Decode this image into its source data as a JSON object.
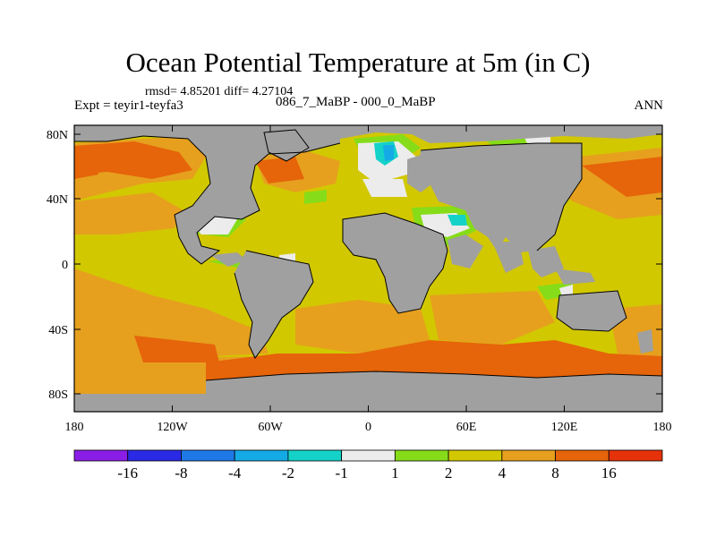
{
  "title": "Ocean Potential Temperature at 5m (in C)",
  "stats_line": "rmsd= 4.85201 diff= 4.27104",
  "expt_line": "Expt = teyir1-teyfa3",
  "diff_name": "086_7_MaBP - 000_0_MaBP",
  "season": "ANN",
  "lat_labels": [
    "80N",
    "40N",
    "0",
    "40S",
    "80S"
  ],
  "lon_labels": [
    "180",
    "120W",
    "60W",
    "0",
    "60E",
    "120E",
    "180"
  ],
  "colorbar": {
    "labels": [
      "-16",
      "-8",
      "-4",
      "-2",
      "-1",
      "1",
      "2",
      "4",
      "8",
      "16"
    ],
    "colors": [
      "#8a1ee6",
      "#2a2ae6",
      "#1e78e6",
      "#14aae6",
      "#14d2c8",
      "#ececec",
      "#86dc18",
      "#d2c800",
      "#e6a01e",
      "#e6640a",
      "#e6320a"
    ]
  },
  "palette": {
    "land": "#a0a0a0",
    "c_small": "#ececec",
    "c_1_2": "#86dc18",
    "c_2_4": "#d2c800",
    "c_4_8": "#e6a01e",
    "c_8_16": "#e6640a",
    "c_neg2_neg1": "#14d2c8",
    "c_neg4_neg2": "#14aae6"
  }
}
